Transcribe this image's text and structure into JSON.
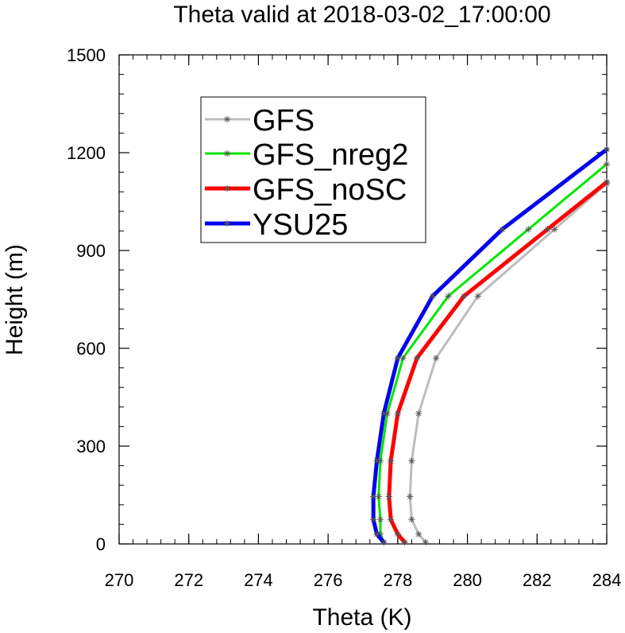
{
  "chart_data": {
    "type": "line",
    "title": "Theta valid at 2018-03-02_17:00:00",
    "xlabel": "Theta (K)",
    "ylabel": "Height (m)",
    "xlim": [
      270,
      284
    ],
    "ylim": [
      0,
      1500
    ],
    "xticks": [
      270,
      272,
      274,
      276,
      278,
      280,
      282,
      284
    ],
    "yticks": [
      0,
      300,
      600,
      900,
      1200,
      1500
    ],
    "legend_position": "top-left inside",
    "series": [
      {
        "name": "GFS",
        "color": "#bdbdbd",
        "points": [
          [
            278.8,
            5
          ],
          [
            278.6,
            30
          ],
          [
            278.4,
            75
          ],
          [
            278.35,
            145
          ],
          [
            278.4,
            255
          ],
          [
            278.6,
            400
          ],
          [
            279.1,
            570
          ],
          [
            280.3,
            760
          ],
          [
            282.5,
            965
          ],
          [
            284.0,
            1105
          ]
        ]
      },
      {
        "name": "GFS_nreg2",
        "color": "#00e600",
        "points": [
          [
            277.6,
            5
          ],
          [
            277.5,
            30
          ],
          [
            277.5,
            75
          ],
          [
            277.45,
            145
          ],
          [
            277.5,
            255
          ],
          [
            277.7,
            400
          ],
          [
            278.15,
            570
          ],
          [
            279.45,
            760
          ],
          [
            281.75,
            965
          ],
          [
            284.0,
            1165
          ]
        ]
      },
      {
        "name": "GFS_noSC",
        "color": "#ff0000",
        "points": [
          [
            278.2,
            5
          ],
          [
            278.0,
            30
          ],
          [
            277.8,
            75
          ],
          [
            277.75,
            145
          ],
          [
            277.8,
            255
          ],
          [
            278.0,
            400
          ],
          [
            278.55,
            570
          ],
          [
            279.9,
            760
          ],
          [
            282.3,
            965
          ],
          [
            284.0,
            1110
          ]
        ]
      },
      {
        "name": "YSU25",
        "color": "#0000ee",
        "points": [
          [
            277.6,
            5
          ],
          [
            277.4,
            30
          ],
          [
            277.3,
            75
          ],
          [
            277.3,
            145
          ],
          [
            277.4,
            255
          ],
          [
            277.6,
            400
          ],
          [
            278.0,
            570
          ],
          [
            279.0,
            760
          ],
          [
            281.0,
            965
          ],
          [
            284.0,
            1210
          ]
        ]
      }
    ]
  }
}
